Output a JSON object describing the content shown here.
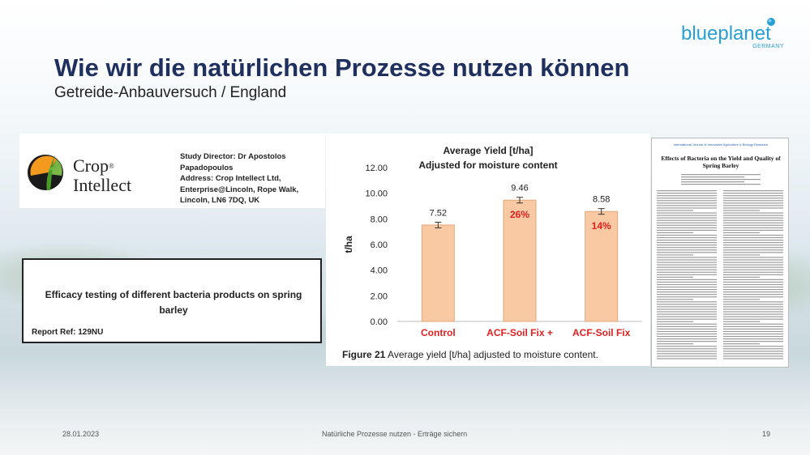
{
  "slide": {
    "title": "Wie wir die natürlichen Prozesse nutzen können",
    "subtitle": "Getreide-Anbauversuch / England"
  },
  "logo": {
    "name": "blueplanet",
    "sub": "GERMANY",
    "color": "#2a9fd6"
  },
  "crop_intellect": {
    "name_line1": "Crop",
    "name_line2": "Intellect",
    "reg": "®",
    "study_director": "Study Director: Dr Apostolos Papadopoulos",
    "address_line1": "Address: Crop Intellect Ltd,",
    "address_line2": "Enterprise@Lincoln, Rope Walk,",
    "address_line3": "Lincoln, LN6 7DQ, UK"
  },
  "report": {
    "title": "Efficacy testing of different bacteria products on spring barley",
    "ref": "Report Ref: 129NU"
  },
  "chart_data": {
    "type": "bar",
    "title": "Average Yield [t/ha]",
    "subtitle": "Adjusted for moisture content",
    "ylabel": "t/ha",
    "xlabel": "",
    "categories": [
      "Control",
      "ACF-Soil Fix +",
      "ACF-Soil Fix"
    ],
    "values": [
      7.52,
      9.46,
      8.58
    ],
    "value_labels": [
      "7.52",
      "9.46",
      "8.58"
    ],
    "increase_labels": [
      "",
      "26%",
      "14%"
    ],
    "ylim": [
      0,
      12
    ],
    "yticks": [
      "0.00",
      "2.00",
      "4.00",
      "6.00",
      "8.00",
      "10.00",
      "12.00"
    ],
    "bar_color": "#f8c9a3",
    "category_color": "#e02020",
    "grid": false
  },
  "figure_caption": {
    "label": "Figure 21",
    "text": " Average yield [t/ha] adjusted to moisture content."
  },
  "paper": {
    "header": "International Journal of Innovative Agriculture & Biology Research",
    "title": "Effects of Bacteria on the Yield and Quality of Spring Barley"
  },
  "footer": {
    "date": "28.01.2023",
    "center": "Natürliche Prozesse nutzen - Erträge sichern",
    "page": "19"
  }
}
